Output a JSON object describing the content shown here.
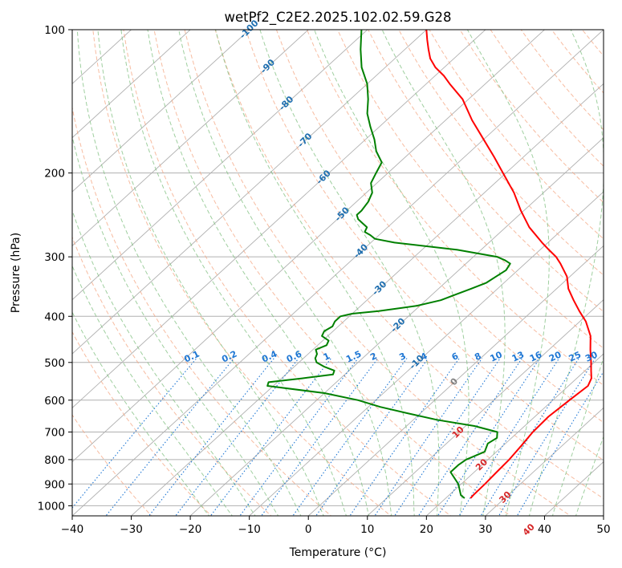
{
  "chart_data": {
    "type": "line",
    "subtype": "skew-T log-P diagram",
    "title": "wetPf2_C2E2.2025.102.02.59.G28",
    "xlabel": "Temperature (°C)",
    "ylabel": "Pressure (hPa)",
    "xlim": [
      -40,
      50
    ],
    "ylim": [
      1050,
      100
    ],
    "y_scale": "log",
    "x_ticks": [
      -40,
      -30,
      -20,
      -10,
      0,
      10,
      20,
      30,
      40,
      50
    ],
    "y_ticks": [
      100,
      200,
      300,
      400,
      500,
      600,
      700,
      800,
      900,
      1000
    ],
    "grid": true,
    "skewed_isotherms": [
      -100,
      -90,
      -80,
      -70,
      -60,
      -50,
      -40,
      -30,
      -20,
      -10,
      0,
      10,
      20,
      30,
      40
    ],
    "mixing_ratio_lines": [
      "0.1",
      "0.2",
      "0.4",
      "0.6",
      "1",
      "1.5",
      "2",
      "3",
      "4",
      "6",
      "8",
      "10",
      "13",
      "16",
      "20",
      "25",
      "30",
      "36"
    ],
    "colors": {
      "temperature": "#ff0000",
      "dewpoint": "#008000",
      "dry_adiabat": "#f4a582",
      "moist_adiabat": "#7fbf7f",
      "mixing_ratio": "#1f77d4",
      "isotherm_label": "#1f6fb0",
      "warm_isotherm_label": "#d62728",
      "zero_isotherm_label": "#808080"
    },
    "series": [
      {
        "key": "temperature",
        "pressure": [
          964,
          950,
          900,
          850,
          800,
          750,
          700,
          650,
          600,
          560,
          540,
          520,
          500,
          470,
          440,
          410,
          390,
          370,
          350,
          330,
          310,
          300,
          290,
          280,
          260,
          240,
          220,
          200,
          185,
          170,
          155,
          140,
          130,
          125,
          120,
          115,
          110,
          105,
          100
        ],
        "temp": [
          24.2,
          24.1,
          24.0,
          23.8,
          23.6,
          23.1,
          22.5,
          22.3,
          22.8,
          23.3,
          22.5,
          21.0,
          19.5,
          17.0,
          14.5,
          11.0,
          8.0,
          5.0,
          2.0,
          -0.5,
          -4.0,
          -6.0,
          -8.5,
          -11.0,
          -16.0,
          -20.5,
          -25.0,
          -30.5,
          -35.0,
          -40.0,
          -45.5,
          -51.0,
          -56.0,
          -58.5,
          -61.5,
          -64.0,
          -66.0,
          -68.0,
          -70.0
        ]
      },
      {
        "key": "dewpoint",
        "pressure": [
          964,
          950,
          900,
          850,
          820,
          800,
          770,
          740,
          720,
          700,
          680,
          660,
          640,
          620,
          600,
          580,
          560,
          550,
          540,
          530,
          520,
          510,
          500,
          490,
          480,
          470,
          460,
          450,
          440,
          430,
          420,
          410,
          400,
          395,
          390,
          380,
          370,
          360,
          350,
          340,
          330,
          320,
          310,
          305,
          300,
          290,
          280,
          275,
          270,
          266,
          260,
          255,
          250,
          245,
          240,
          230,
          220,
          210,
          200,
          190,
          180,
          170,
          160,
          150,
          140,
          130,
          120,
          110,
          100
        ],
        "temp": [
          23.2,
          22.0,
          19.5,
          16.0,
          16.0,
          16.3,
          18.0,
          17.0,
          17.5,
          16.5,
          11.5,
          4.0,
          -2.0,
          -8.0,
          -13.0,
          -20.0,
          -31.0,
          -31.5,
          -26.5,
          -22.0,
          -22.5,
          -25.0,
          -27.0,
          -28.0,
          -28.5,
          -29.5,
          -28.5,
          -29.0,
          -31.0,
          -31.5,
          -31.0,
          -31.5,
          -31.5,
          -30.0,
          -26.0,
          -20.5,
          -17.5,
          -16.0,
          -14.5,
          -13.0,
          -12.5,
          -12.0,
          -12.5,
          -14.0,
          -16.0,
          -24.0,
          -36.0,
          -40.0,
          -41.5,
          -43.0,
          -43.5,
          -45.0,
          -46.5,
          -47.5,
          -47.5,
          -48.0,
          -49.0,
          -51.0,
          -52.0,
          -53.0,
          -56.0,
          -58.5,
          -61.5,
          -64.5,
          -67.0,
          -70.0,
          -74.0,
          -77.5,
          -81.0
        ]
      }
    ]
  }
}
